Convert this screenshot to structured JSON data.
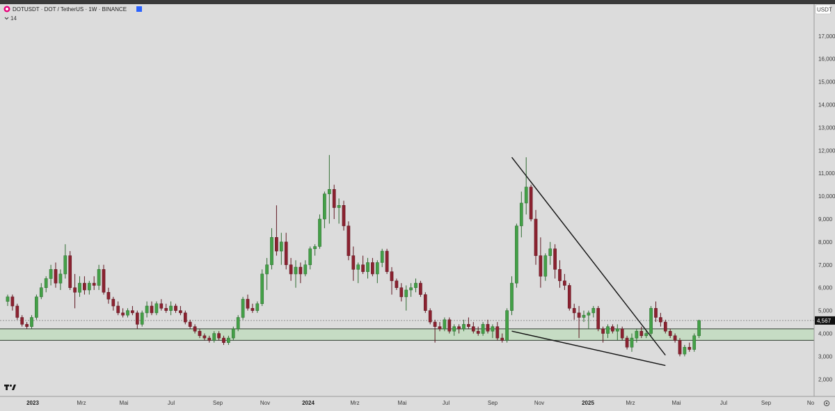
{
  "header": {
    "symbol_line": "DOTUSDT · DOT / TetherUS · 1W · BINANCE",
    "indicator_value": "14"
  },
  "price_scale": {
    "currency_badge": "USDT",
    "last_price_label": "4,567",
    "tick_labels": [
      "17,000",
      "16,000",
      "15,000",
      "14,000",
      "13,000",
      "12,000",
      "11,000",
      "10,000",
      "9,000",
      "8,000",
      "7,000",
      "6,000",
      "5,000",
      "4,000",
      "3,000",
      "2,000"
    ]
  },
  "time_axis": {
    "labels": [
      "2023",
      "Mrz",
      "Mai",
      "Jul",
      "Sep",
      "Nov",
      "2024",
      "Mrz",
      "Mai",
      "Jul",
      "Sep",
      "Nov",
      "2025",
      "Mrz",
      "Mai",
      "Jul",
      "Sep",
      "No"
    ],
    "bold": [
      "2023",
      "2024",
      "2025"
    ]
  },
  "colors": {
    "up": "#43a047",
    "down": "#8b2230",
    "background": "#dcdcdc",
    "support_zone": "#c6dcc4",
    "trend_line": "#111111"
  },
  "icons": {
    "logo": "tradingview-logo-icon",
    "flag": "blue-flag-icon",
    "collapse": "chevron-down-icon",
    "settings": "gear-icon"
  },
  "chart_data": {
    "type": "candlestick",
    "timeframe": "1W",
    "ylim": [
      1500,
      18000
    ],
    "y_ticks": [
      17000,
      16000,
      15000,
      14000,
      13000,
      12000,
      11000,
      10000,
      9000,
      8000,
      7000,
      6000,
      5000,
      4000,
      3000,
      2000
    ],
    "last_price": 4567,
    "support_zone": [
      3700,
      4200
    ],
    "trend_lines": [
      {
        "from": {
          "date": "2024-12-02",
          "price": 11700
        },
        "to": {
          "date": "2025-07-14",
          "price": 3050
        }
      },
      {
        "from": {
          "date": "2024-12-02",
          "price": 4100
        },
        "to": {
          "date": "2025-07-14",
          "price": 2600
        }
      }
    ],
    "x_axis_labels": [
      "2023",
      "Mrz",
      "Mai",
      "Jul",
      "Sep",
      "Nov",
      "2024",
      "Mrz",
      "Mai",
      "Jul",
      "Sep",
      "Nov",
      "2025",
      "Mrz",
      "Mai",
      "Jul",
      "Sep",
      "No"
    ],
    "candles": [
      [
        5.4,
        5.7,
        5.2,
        5.6
      ],
      [
        5.6,
        5.7,
        5.0,
        5.2
      ],
      [
        5.2,
        5.3,
        4.6,
        4.7
      ],
      [
        4.7,
        4.8,
        4.3,
        4.4
      ],
      [
        4.4,
        4.5,
        4.2,
        4.3
      ],
      [
        4.3,
        4.8,
        4.2,
        4.7
      ],
      [
        4.7,
        5.7,
        4.6,
        5.6
      ],
      [
        5.6,
        6.2,
        5.5,
        6.0
      ],
      [
        6.0,
        6.5,
        5.8,
        6.4
      ],
      [
        6.4,
        7.0,
        6.1,
        6.8
      ],
      [
        6.8,
        7.1,
        6.0,
        6.2
      ],
      [
        6.2,
        6.8,
        5.9,
        6.6
      ],
      [
        6.6,
        7.9,
        6.4,
        7.4
      ],
      [
        7.4,
        7.6,
        5.9,
        6.0
      ],
      [
        6.0,
        6.6,
        5.1,
        5.8
      ],
      [
        5.8,
        6.5,
        5.6,
        6.2
      ],
      [
        6.2,
        6.5,
        5.7,
        5.9
      ],
      [
        5.9,
        6.3,
        5.7,
        6.2
      ],
      [
        6.2,
        6.5,
        5.9,
        6.1
      ],
      [
        6.1,
        7.0,
        5.9,
        6.8
      ],
      [
        6.8,
        7.0,
        5.7,
        5.8
      ],
      [
        5.8,
        6.0,
        5.3,
        5.5
      ],
      [
        5.5,
        5.6,
        5.0,
        5.2
      ],
      [
        5.2,
        5.4,
        4.8,
        4.9
      ],
      [
        4.9,
        5.1,
        4.7,
        4.8
      ],
      [
        4.8,
        5.1,
        4.7,
        5.0
      ],
      [
        5.0,
        5.2,
        4.8,
        4.9
      ],
      [
        4.9,
        5.0,
        4.2,
        4.4
      ],
      [
        4.4,
        5.0,
        4.3,
        4.9
      ],
      [
        4.9,
        5.4,
        4.7,
        5.2
      ],
      [
        5.2,
        5.4,
        4.8,
        4.9
      ],
      [
        4.9,
        5.4,
        4.8,
        5.3
      ],
      [
        5.3,
        5.5,
        5.0,
        5.1
      ],
      [
        5.1,
        5.3,
        4.9,
        5.0
      ],
      [
        5.0,
        5.4,
        4.8,
        5.2
      ],
      [
        5.2,
        5.3,
        4.9,
        5.0
      ],
      [
        5.0,
        5.2,
        4.8,
        4.9
      ],
      [
        4.9,
        5.0,
        4.4,
        4.5
      ],
      [
        4.5,
        4.6,
        4.2,
        4.3
      ],
      [
        4.3,
        4.4,
        4.0,
        4.1
      ],
      [
        4.1,
        4.2,
        3.8,
        3.9
      ],
      [
        3.9,
        4.0,
        3.7,
        3.8
      ],
      [
        3.8,
        3.9,
        3.6,
        3.7
      ],
      [
        3.7,
        4.1,
        3.6,
        4.0
      ],
      [
        4.0,
        4.1,
        3.7,
        3.8
      ],
      [
        3.8,
        3.9,
        3.5,
        3.6
      ],
      [
        3.6,
        3.9,
        3.5,
        3.8
      ],
      [
        3.8,
        4.3,
        3.7,
        4.2
      ],
      [
        4.2,
        4.8,
        4.1,
        4.7
      ],
      [
        4.7,
        5.6,
        4.6,
        5.5
      ],
      [
        5.5,
        5.7,
        5.0,
        5.1
      ],
      [
        5.1,
        5.3,
        4.9,
        5.0
      ],
      [
        5.0,
        5.4,
        4.9,
        5.3
      ],
      [
        5.3,
        6.8,
        5.2,
        6.6
      ],
      [
        6.6,
        7.3,
        5.9,
        7.0
      ],
      [
        7.0,
        8.6,
        6.8,
        8.2
      ],
      [
        8.2,
        9.6,
        7.4,
        7.6
      ],
      [
        7.6,
        8.4,
        7.0,
        8.0
      ],
      [
        8.0,
        8.4,
        6.8,
        7.0
      ],
      [
        7.0,
        7.3,
        6.3,
        6.6
      ],
      [
        6.6,
        7.2,
        6.0,
        6.9
      ],
      [
        6.9,
        7.1,
        6.2,
        6.6
      ],
      [
        6.6,
        7.2,
        6.5,
        7.0
      ],
      [
        7.0,
        7.8,
        6.8,
        7.7
      ],
      [
        7.7,
        7.9,
        7.4,
        7.8
      ],
      [
        7.8,
        9.2,
        7.7,
        9.0
      ],
      [
        9.0,
        10.2,
        8.6,
        10.1
      ],
      [
        10.1,
        11.8,
        8.8,
        10.3
      ],
      [
        10.3,
        10.5,
        9.0,
        9.5
      ],
      [
        9.5,
        9.9,
        8.8,
        9.6
      ],
      [
        9.6,
        9.8,
        8.5,
        8.7
      ],
      [
        8.7,
        8.9,
        7.2,
        7.4
      ],
      [
        7.4,
        7.8,
        6.3,
        6.8
      ],
      [
        6.8,
        7.1,
        6.2,
        7.0
      ],
      [
        7.0,
        7.4,
        6.6,
        6.7
      ],
      [
        6.7,
        7.3,
        6.4,
        7.1
      ],
      [
        7.1,
        7.3,
        6.5,
        6.6
      ],
      [
        6.6,
        7.2,
        6.2,
        7.1
      ],
      [
        7.1,
        7.7,
        6.9,
        7.6
      ],
      [
        7.6,
        7.7,
        6.6,
        6.7
      ],
      [
        6.7,
        6.9,
        5.7,
        6.3
      ],
      [
        6.3,
        6.4,
        5.9,
        6.0
      ],
      [
        6.0,
        6.2,
        5.4,
        5.6
      ],
      [
        5.6,
        6.1,
        5.0,
        5.9
      ],
      [
        5.9,
        6.2,
        5.6,
        6.0
      ],
      [
        6.0,
        6.4,
        5.8,
        6.2
      ],
      [
        6.2,
        6.3,
        5.6,
        5.7
      ],
      [
        5.7,
        5.8,
        4.9,
        5.0
      ],
      [
        5.0,
        5.1,
        4.4,
        4.5
      ],
      [
        4.5,
        4.6,
        3.6,
        4.3
      ],
      [
        4.3,
        4.5,
        4.1,
        4.2
      ],
      [
        4.2,
        4.7,
        4.1,
        4.6
      ],
      [
        4.6,
        4.7,
        4.0,
        4.1
      ],
      [
        4.1,
        4.4,
        3.9,
        4.3
      ],
      [
        4.3,
        4.4,
        4.0,
        4.2
      ],
      [
        4.2,
        4.6,
        4.1,
        4.4
      ],
      [
        4.4,
        4.7,
        4.2,
        4.3
      ],
      [
        4.3,
        4.5,
        4.0,
        4.1
      ],
      [
        4.1,
        4.3,
        3.9,
        4.0
      ],
      [
        4.0,
        4.5,
        3.9,
        4.4
      ],
      [
        4.4,
        4.6,
        4.0,
        4.1
      ],
      [
        4.1,
        4.4,
        3.8,
        4.3
      ],
      [
        4.3,
        4.5,
        3.7,
        3.8
      ],
      [
        3.8,
        4.0,
        3.6,
        3.7
      ],
      [
        3.7,
        5.1,
        3.6,
        5.0
      ],
      [
        5.0,
        6.5,
        4.8,
        6.2
      ],
      [
        6.2,
        8.8,
        6.0,
        8.7
      ],
      [
        8.7,
        10.2,
        8.2,
        9.7
      ],
      [
        9.7,
        11.7,
        9.2,
        10.4
      ],
      [
        10.4,
        10.5,
        8.9,
        9.0
      ],
      [
        9.0,
        9.4,
        7.0,
        7.4
      ],
      [
        7.4,
        8.2,
        6.0,
        6.5
      ],
      [
        6.5,
        7.5,
        6.3,
        7.4
      ],
      [
        7.4,
        8.0,
        7.0,
        7.7
      ],
      [
        7.7,
        7.9,
        6.4,
        6.8
      ],
      [
        6.8,
        7.2,
        6.0,
        6.3
      ],
      [
        6.3,
        6.6,
        5.9,
        6.1
      ],
      [
        6.1,
        6.2,
        5.0,
        5.1
      ],
      [
        5.1,
        5.3,
        4.6,
        4.9
      ],
      [
        4.9,
        5.2,
        3.8,
        4.7
      ],
      [
        4.7,
        5.0,
        4.5,
        4.8
      ],
      [
        4.8,
        5.0,
        4.2,
        4.9
      ],
      [
        4.9,
        5.2,
        4.7,
        5.1
      ],
      [
        5.1,
        5.2,
        4.1,
        4.2
      ],
      [
        4.2,
        4.3,
        3.6,
        4.0
      ],
      [
        4.0,
        4.4,
        3.8,
        4.3
      ],
      [
        4.3,
        4.4,
        4.0,
        4.1
      ],
      [
        4.1,
        4.4,
        3.7,
        4.2
      ],
      [
        4.2,
        4.3,
        3.7,
        3.8
      ],
      [
        3.8,
        3.9,
        3.3,
        3.4
      ],
      [
        3.4,
        4.0,
        3.2,
        3.8
      ],
      [
        3.8,
        4.2,
        3.6,
        4.1
      ],
      [
        4.1,
        4.3,
        3.8,
        3.9
      ],
      [
        3.9,
        4.1,
        3.8,
        4.0
      ],
      [
        4.0,
        5.2,
        3.9,
        5.1
      ],
      [
        5.1,
        5.4,
        4.5,
        4.7
      ],
      [
        4.7,
        4.9,
        4.3,
        4.5
      ],
      [
        4.5,
        4.6,
        4.0,
        4.1
      ],
      [
        4.1,
        4.2,
        3.8,
        3.9
      ],
      [
        3.9,
        4.0,
        3.6,
        3.7
      ],
      [
        3.7,
        3.8,
        3.0,
        3.1
      ],
      [
        3.1,
        3.5,
        3.0,
        3.4
      ],
      [
        3.4,
        3.6,
        3.2,
        3.3
      ],
      [
        3.3,
        4.0,
        3.2,
        3.9
      ],
      [
        3.9,
        4.6,
        3.8,
        4.567
      ]
    ],
    "candle_format": "open, high, low, close in thousands of USDT per weekly bar, oldest first"
  }
}
